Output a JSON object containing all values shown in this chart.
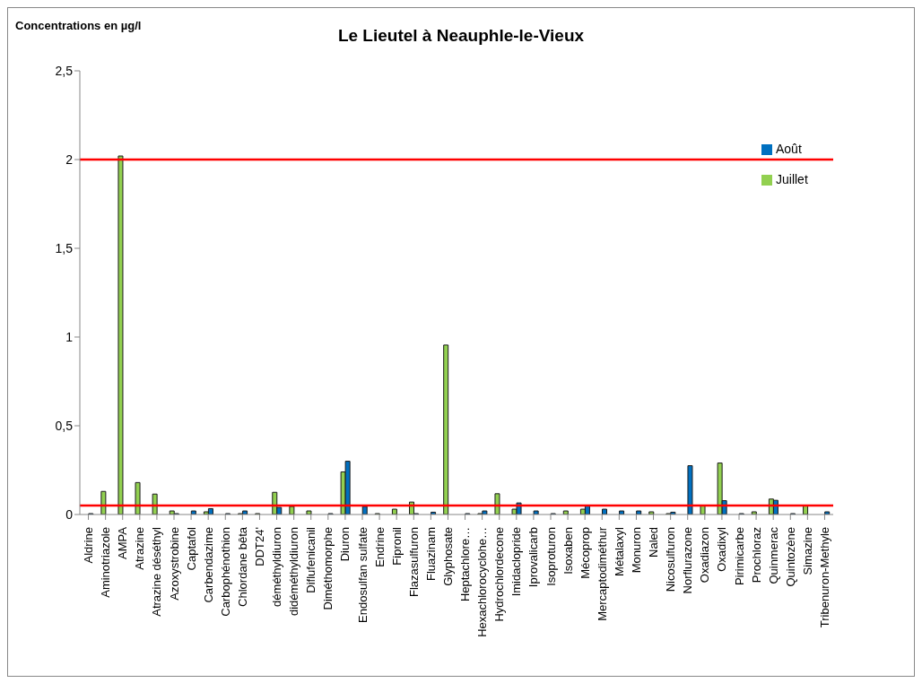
{
  "chart_data": {
    "type": "bar",
    "title": "Le Lieutel à Neauphle-le-Vieux",
    "ylabel": "Concentrations en µg/l",
    "categories": [
      "Aldrine",
      "Aminotriazole",
      "AMPA",
      "Atrazine",
      "Atrazine déséthyl",
      "Azoxystrobine",
      "Captafol",
      "Carbendazime",
      "Carbophénothion",
      "Chlordane bêta",
      "DDT24'",
      "déméthyldiuron",
      "didéméthyldiuron",
      "Diflufenicanil",
      "Diméthomorphe",
      "Diuron",
      "Endosulfan sulfate",
      "Endrine",
      "Fipronil",
      "Flazasulfuron",
      "Fluazinam",
      "Glyphosate",
      "Heptachlore…",
      "Hexachlorocyclohe…",
      "Hydrochlordecone",
      "Imidaclopride",
      "Iprovalicarb",
      "Isoproturon",
      "Isoxaben",
      "Mécoprop",
      "Mercaptodiméthur",
      "Métalaxyl",
      "Monuron",
      "Naled",
      "Nicosulfuron",
      "Norflurazone",
      "Oxadiazon",
      "Oxadixyl",
      "Pirimicarbe",
      "Prochloraz",
      "Quinmerac",
      "Quintozène",
      "Simazine",
      "Tribenuron-Methyle"
    ],
    "series": [
      {
        "name": "Juillet",
        "color": "#92d050",
        "values": [
          null,
          0.13,
          2.02,
          0.18,
          0.115,
          0.02,
          null,
          0.015,
          null,
          0.005,
          0.005,
          0.125,
          0.045,
          0.02,
          null,
          0.24,
          null,
          0.005,
          0.03,
          0.07,
          null,
          0.955,
          null,
          0.005,
          0.117,
          0.03,
          null,
          null,
          0.02,
          0.03,
          null,
          null,
          null,
          0.015,
          0.005,
          null,
          0.05,
          0.29,
          null,
          0.015,
          0.087,
          null,
          0.05,
          null
        ]
      },
      {
        "name": "Août",
        "color": "#0070c0",
        "values": [
          0.005,
          null,
          null,
          null,
          null,
          0.005,
          0.02,
          0.033,
          0.005,
          0.02,
          null,
          0.04,
          null,
          null,
          0.005,
          0.3,
          0.045,
          null,
          null,
          0.005,
          0.013,
          null,
          0.005,
          0.02,
          null,
          0.065,
          0.02,
          0.005,
          null,
          0.05,
          0.03,
          0.02,
          0.02,
          null,
          0.013,
          0.275,
          null,
          0.078,
          0.005,
          null,
          0.08,
          0.005,
          null,
          0.015
        ]
      }
    ],
    "ylim": [
      0,
      2.5
    ],
    "yticks": [
      {
        "value": 0,
        "label": "0"
      },
      {
        "value": 0.5,
        "label": "0,5"
      },
      {
        "value": 1,
        "label": "1"
      },
      {
        "value": 1.5,
        "label": "1,5"
      },
      {
        "value": 2,
        "label": "2"
      },
      {
        "value": 2.5,
        "label": "2,5"
      }
    ],
    "ref_lines": [
      {
        "axis": "y",
        "value": 2,
        "color": "#ff0000"
      },
      {
        "axis": "y",
        "value": 0.05,
        "color": "#ff0000"
      }
    ],
    "grid": false,
    "legend": "top right"
  }
}
